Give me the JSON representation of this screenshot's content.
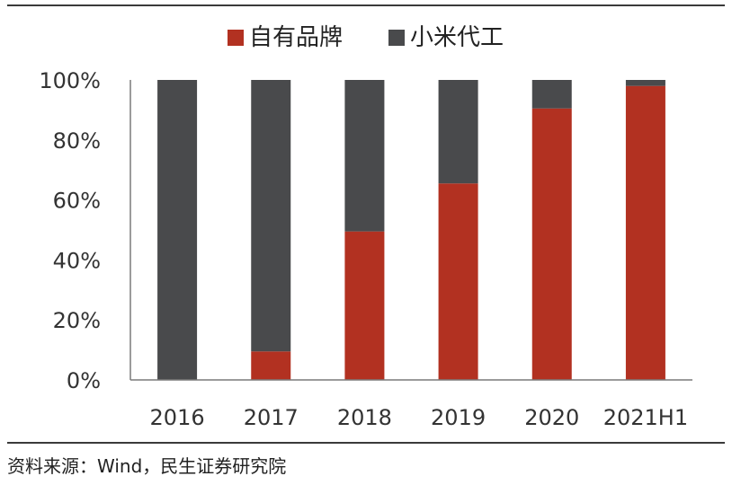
{
  "chart_data": {
    "type": "bar",
    "stacked": true,
    "title": "",
    "xlabel": "",
    "ylabel": "",
    "categories": [
      "2016",
      "2017",
      "2018",
      "2019",
      "2020",
      "2021H1"
    ],
    "series": [
      {
        "name": "自有品牌",
        "color": "#b23121",
        "values": [
          0,
          9.5,
          49.5,
          65.5,
          90.5,
          98
        ]
      },
      {
        "name": "小米代工",
        "color": "#494a4c",
        "values": [
          100,
          90.5,
          50.5,
          34.5,
          9.5,
          2
        ]
      }
    ],
    "ylim": [
      0,
      100
    ],
    "yticks": [
      "0%",
      "20%",
      "40%",
      "60%",
      "80%",
      "100%"
    ],
    "ytick_values": [
      0,
      20,
      40,
      60,
      80,
      100
    ],
    "legend_position": "top"
  },
  "source_text": "资料来源：Wind，民生证券研究院"
}
